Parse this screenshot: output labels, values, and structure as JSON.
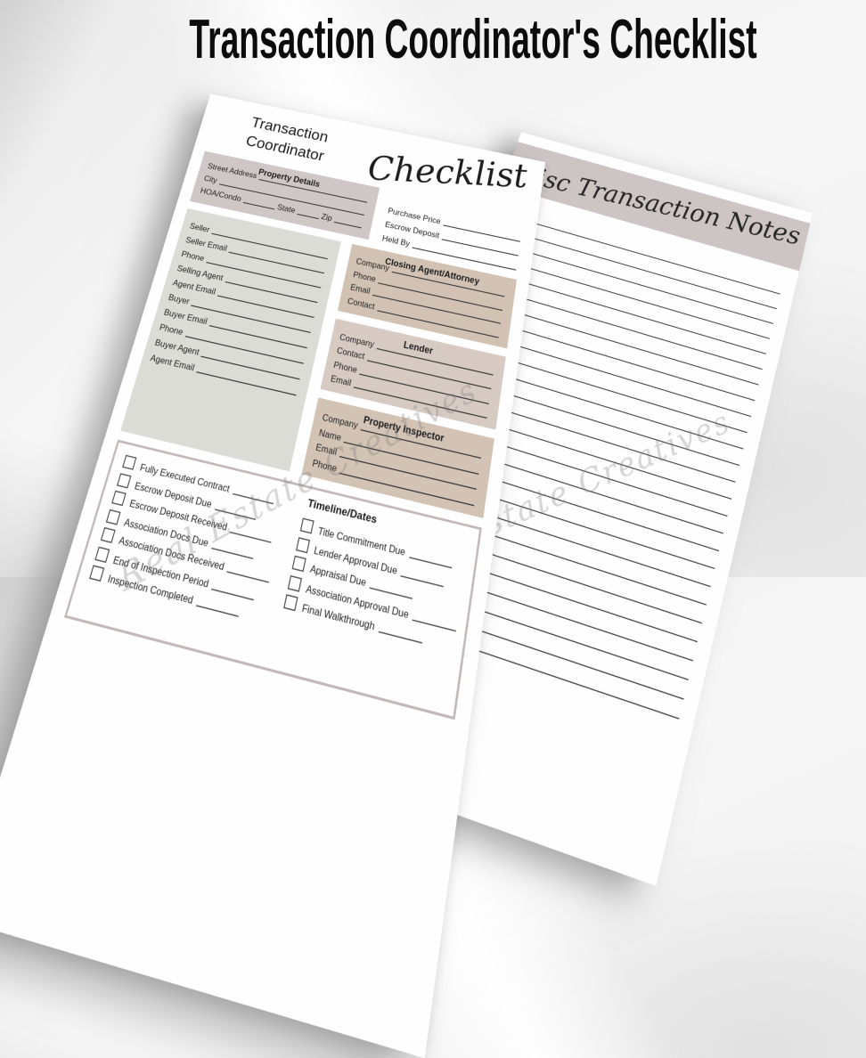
{
  "main_title": "Transaction Coordinator's Checklist",
  "watermark": "Real Estate Creatives",
  "left_page": {
    "header": {
      "line1": "Transaction",
      "line2": "Coordinator",
      "script": "Checklist"
    },
    "property_details": {
      "title": "Property Details",
      "first_field": "Street Address",
      "fields": [
        "City"
      ],
      "row3": [
        "HOA/Condo",
        "State",
        "Zip"
      ]
    },
    "price_fields": [
      "Purchase Price",
      "Escrow Deposit",
      "Held By"
    ],
    "seller_fields": [
      "Seller",
      "Seller Email",
      "Phone",
      "Selling Agent",
      "Agent Email",
      "Buyer",
      "Buyer Email",
      "Phone",
      "Buyer Agent",
      "Agent Email"
    ],
    "closing_agent": {
      "title": "Closing Agent/Attorney",
      "first_field": "Company",
      "fields": [
        "Phone",
        "Email",
        "Contact"
      ]
    },
    "lender": {
      "title": "Lender",
      "first_field": "Company",
      "fields": [
        "Contact",
        "Phone",
        "Email"
      ]
    },
    "property_inspector": {
      "title": "Property Inspector",
      "first_field": "Company",
      "fields": [
        "Name",
        "Email",
        "Phone"
      ]
    },
    "timeline": {
      "title": "Timeline/Dates",
      "left_items": [
        "Fully Executed Contract",
        "Escrow Deposit Due",
        "Escrow Deposit Received",
        "Association Docs Due",
        "Association Docs Received",
        "End of Inspection Period",
        "Inspection Completed"
      ],
      "right_items": [
        "Title Commitment Due",
        "Lender Approval Due",
        "Appraisal Due",
        "Association Approval Due",
        "Final Walkthrough"
      ]
    }
  },
  "right_page": {
    "title": "Misc Transaction Notes",
    "line_count": 26
  },
  "colors": {
    "property_details_bg": "#cfc6c6",
    "seller_bg": "#dcdcd6",
    "closing_agent_bg": "#d2c2b3",
    "lender_bg": "#d6cac2",
    "inspector_bg": "#d3c3b5",
    "notes_header_bg": "#cdc4c4",
    "timeline_border": "#c3b8b8",
    "title_color": "#0c0c0c"
  }
}
